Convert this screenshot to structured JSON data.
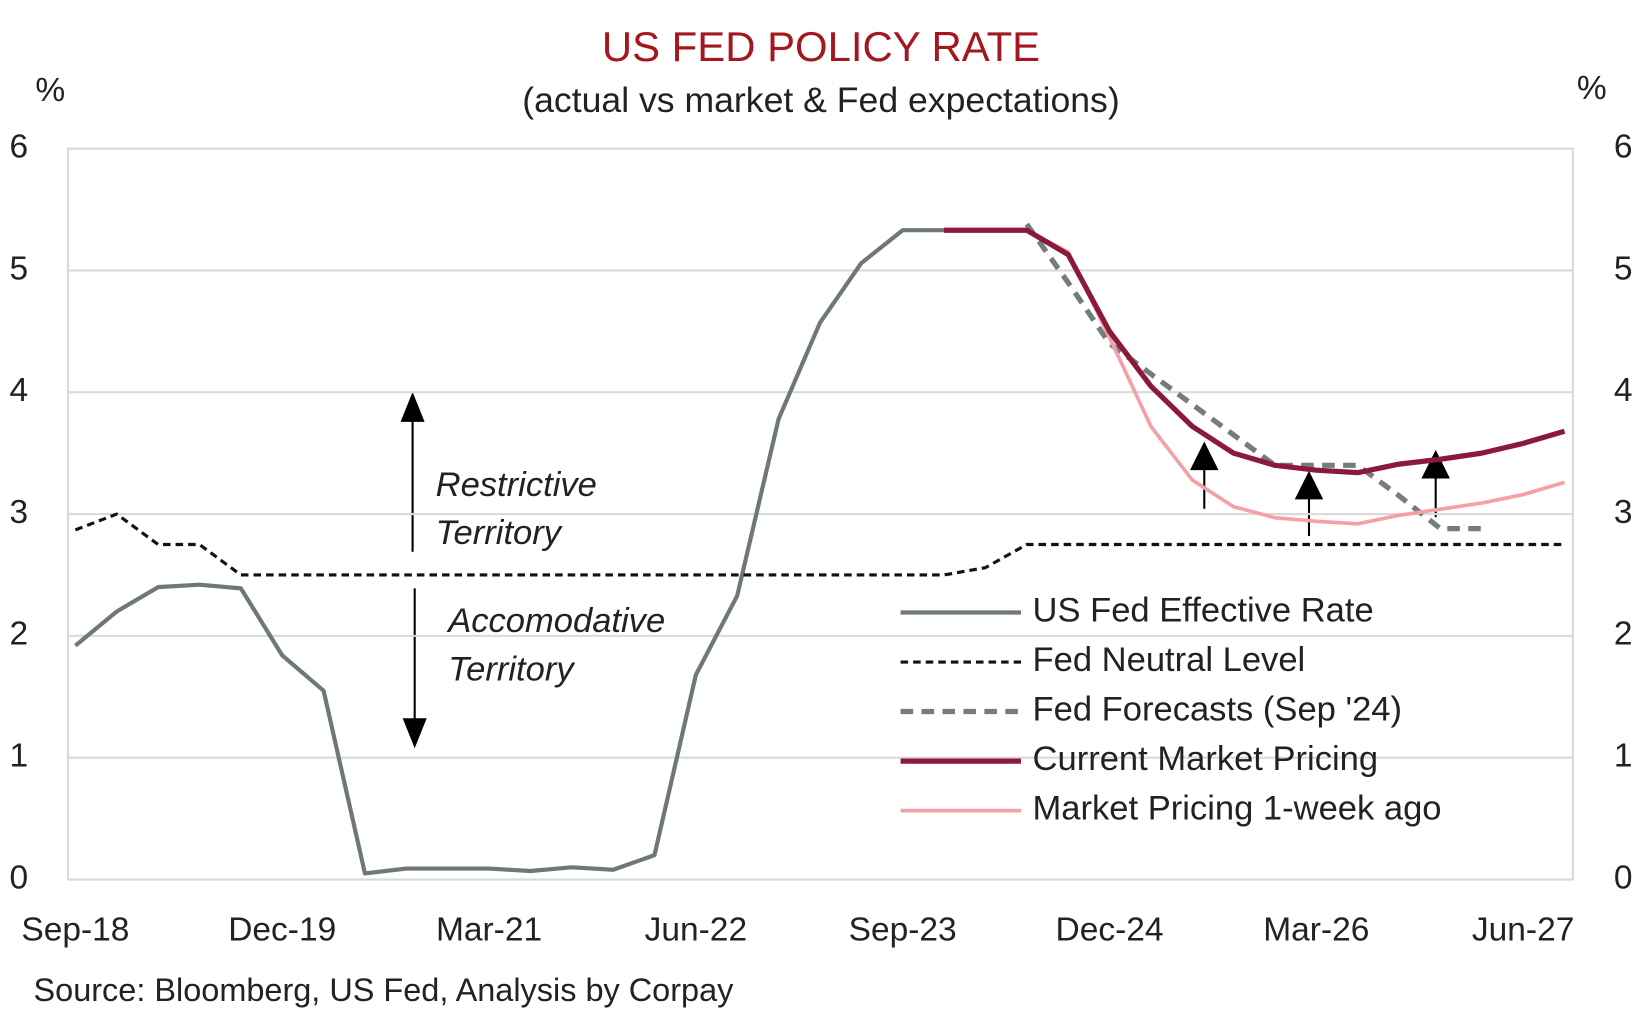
{
  "chart_data": {
    "type": "line",
    "title": "US FED POLICY RATE",
    "subtitle": "(actual vs market & Fed expectations)",
    "ylabel": "%",
    "y2label": "%",
    "source": "Source: Bloomberg, US Fed, Analysis by Corpay",
    "categories": [
      "Sep-18",
      null,
      null,
      null,
      null,
      "Dec-19",
      null,
      null,
      null,
      null,
      "Mar-21",
      null,
      null,
      null,
      null,
      "Jun-22",
      null,
      null,
      null,
      null,
      "Sep-23",
      null,
      null,
      null,
      null,
      "Dec-24",
      null,
      null,
      null,
      null,
      "Mar-26",
      null,
      null,
      null,
      null,
      "Jun-27",
      null
    ],
    "ylim": [
      0,
      6
    ],
    "yticks": [
      0,
      1,
      2,
      3,
      4,
      5,
      6
    ],
    "y2lim": [
      0,
      6
    ],
    "y2ticks": [
      0,
      1,
      2,
      3,
      4,
      5,
      6
    ],
    "grid": true,
    "legend": "center right",
    "series": [
      {
        "name": "US Fed Effective Rate",
        "color": "#6e7977",
        "dash": false,
        "width": 4,
        "values": [
          1.92,
          2.2,
          2.4,
          2.42,
          2.39,
          1.84,
          1.55,
          0.05,
          0.09,
          0.09,
          0.09,
          0.07,
          0.1,
          0.08,
          0.2,
          1.68,
          2.33,
          3.78,
          4.57,
          5.06,
          5.33,
          5.33,
          null,
          null,
          null,
          null,
          null,
          null,
          null,
          null,
          null,
          null,
          null,
          null,
          null,
          null,
          null
        ]
      },
      {
        "name": "Fed Neutral Level",
        "color": "#111111",
        "dash": true,
        "width": 3,
        "values": [
          2.87,
          3.0,
          2.75,
          2.75,
          2.5,
          2.5,
          2.5,
          2.5,
          2.5,
          2.5,
          2.5,
          2.5,
          2.5,
          2.5,
          2.5,
          2.5,
          2.5,
          2.5,
          2.5,
          2.5,
          2.5,
          2.5,
          2.56,
          2.75,
          2.75,
          2.75,
          2.75,
          2.75,
          2.75,
          2.75,
          2.75,
          2.75,
          2.75,
          2.75,
          2.75,
          2.75,
          2.75
        ]
      },
      {
        "name": "Fed Forecasts (Sep '24)",
        "color": "#747d7b",
        "dash": true,
        "width": 5,
        "values": [
          null,
          null,
          null,
          null,
          null,
          null,
          null,
          null,
          null,
          null,
          null,
          null,
          null,
          null,
          null,
          null,
          null,
          null,
          null,
          null,
          null,
          null,
          null,
          5.38,
          4.9,
          4.4,
          4.15,
          3.9,
          3.65,
          3.4,
          3.4,
          3.4,
          3.15,
          2.88,
          2.88,
          null,
          null
        ]
      },
      {
        "name": "Current Market Pricing",
        "color": "#8b1a3a",
        "dash": false,
        "width": 5,
        "values": [
          null,
          null,
          null,
          null,
          null,
          null,
          null,
          null,
          null,
          null,
          null,
          null,
          null,
          null,
          null,
          null,
          null,
          null,
          null,
          null,
          null,
          5.33,
          5.33,
          5.33,
          5.13,
          4.5,
          4.05,
          3.72,
          3.5,
          3.4,
          3.36,
          3.34,
          3.41,
          3.45,
          3.5,
          3.58,
          3.68
        ]
      },
      {
        "name": "Market Pricing 1-week ago",
        "color": "#f4a0a7",
        "dash": false,
        "width": 3.5,
        "values": [
          null,
          null,
          null,
          null,
          null,
          null,
          null,
          null,
          null,
          null,
          null,
          null,
          null,
          null,
          null,
          null,
          null,
          null,
          null,
          null,
          null,
          5.33,
          5.33,
          5.33,
          5.15,
          4.45,
          3.72,
          3.28,
          3.06,
          2.97,
          2.94,
          2.92,
          2.99,
          3.04,
          3.09,
          3.16,
          3.26
        ]
      }
    ],
    "annotations": [
      {
        "lines": [
          "Restrictive",
          "Territory"
        ]
      },
      {
        "lines": [
          "Accomodative",
          "Territory"
        ]
      }
    ]
  }
}
